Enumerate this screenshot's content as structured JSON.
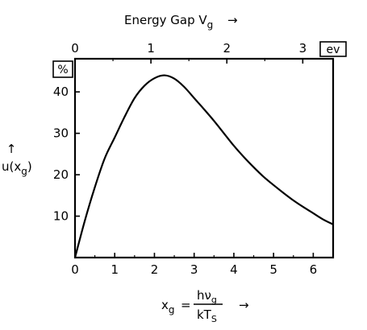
{
  "chart_data": {
    "type": "line",
    "top_axis": {
      "title_main": "Energy Gap V",
      "title_sub": "g",
      "arrow": "→",
      "unit": "ev",
      "ticks": [
        "0",
        "1",
        "2",
        "3"
      ],
      "tick_values": [
        0,
        1,
        2,
        3
      ],
      "xlim": [
        0,
        3.4
      ]
    },
    "bottom_axis": {
      "symbol_main": "x",
      "symbol_sub": "g",
      "equals": "=",
      "numerator": "hν",
      "numerator_sub": "g",
      "denominator": "kT",
      "denominator_sub": "S",
      "arrow": "→",
      "ticks": [
        "0",
        "1",
        "2",
        "3",
        "4",
        "5",
        "6"
      ],
      "tick_values": [
        0,
        1,
        2,
        3,
        4,
        5,
        6
      ],
      "xlim": [
        0,
        6.5
      ]
    },
    "y_axis": {
      "label_main": "u(x",
      "label_sub": "g",
      "label_close": ")",
      "arrow": "↑",
      "unit": "%",
      "ticks": [
        "10",
        "20",
        "30",
        "40"
      ],
      "tick_values": [
        10,
        20,
        30,
        40
      ],
      "ylim": [
        0,
        48
      ]
    },
    "grid": false,
    "series": [
      {
        "x": [
          0,
          0.25,
          0.5,
          0.75,
          1.0,
          1.25,
          1.5,
          1.75,
          2.0,
          2.25,
          2.5,
          2.75,
          3.0,
          3.25,
          3.5,
          3.75,
          4.0,
          4.25,
          4.5,
          4.75,
          5.0,
          5.25,
          5.5,
          5.75,
          6.0,
          6.25,
          6.5
        ],
        "y": [
          0,
          9,
          17,
          24,
          29,
          34,
          38.5,
          41.5,
          43.3,
          44.0,
          43.2,
          41.2,
          38.5,
          35.8,
          33.0,
          30.0,
          27.0,
          24.3,
          21.8,
          19.5,
          17.5,
          15.6,
          13.8,
          12.2,
          10.7,
          9.2,
          8.0
        ]
      }
    ]
  }
}
